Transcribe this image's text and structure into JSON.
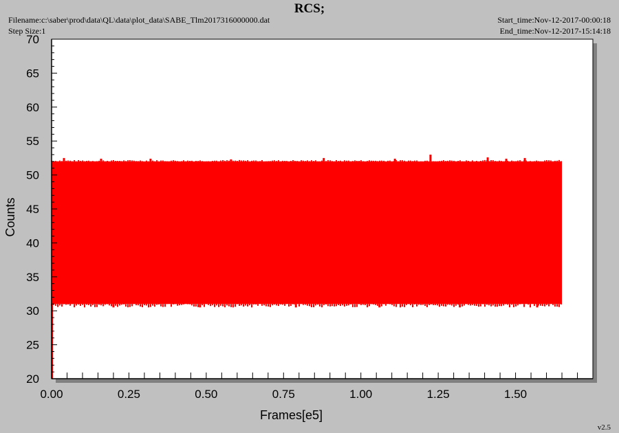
{
  "header": {
    "title": "RCS;",
    "filename": "Filename:c:\\saber\\prod\\data\\QL\\data\\plot_data\\SABE_Tlm2017316000000.dat",
    "step_size": "Step Size:1",
    "start_time": "Start_time:Nov-12-2017-00:00:18",
    "end_time": "End_time:Nov-12-2017-15:14:18"
  },
  "footer": {
    "version": "v2.5"
  },
  "colors": {
    "series": "#ff0000",
    "background": "#c0c0c0",
    "plot_area": "#ffffff",
    "shadow": "#808080"
  },
  "chart_data": {
    "type": "line",
    "title": "RCS;",
    "xlabel": "Frames[e5]",
    "ylabel": "Counts",
    "xlim": [
      0,
      1.75
    ],
    "ylim": [
      20,
      70
    ],
    "xticks": [
      0.0,
      0.25,
      0.5,
      0.75,
      1.0,
      1.25,
      1.5
    ],
    "xtick_labels": [
      "0.00",
      "0.25",
      "0.50",
      "0.75",
      "1.00",
      "1.25",
      "1.50"
    ],
    "yticks": [
      20,
      25,
      30,
      35,
      40,
      45,
      50,
      55,
      60,
      65,
      70
    ],
    "ytick_labels": [
      "20",
      "25",
      "30",
      "35",
      "40",
      "45",
      "50",
      "55",
      "60",
      "65",
      "70"
    ],
    "grid": false,
    "series": [
      {
        "color": "#ff0000",
        "x_range": [
          0.0,
          1.65
        ],
        "band_low": 30.5,
        "band_high": 52.2,
        "typical_low": 31.0,
        "typical_high": 52.0,
        "start_value": 20.0,
        "spikes": [
          {
            "x": 0.04,
            "y": 52.5
          },
          {
            "x": 0.16,
            "y": 52.4
          },
          {
            "x": 0.32,
            "y": 52.4
          },
          {
            "x": 0.58,
            "y": 52.3
          },
          {
            "x": 0.88,
            "y": 52.5
          },
          {
            "x": 1.11,
            "y": 52.4
          },
          {
            "x": 1.225,
            "y": 53.0
          },
          {
            "x": 1.41,
            "y": 52.6
          },
          {
            "x": 1.47,
            "y": 52.4
          },
          {
            "x": 1.53,
            "y": 52.5
          }
        ],
        "dips": [
          {
            "x": 0.2,
            "y": 30.5
          },
          {
            "x": 0.48,
            "y": 30.5
          },
          {
            "x": 0.79,
            "y": 30.5
          },
          {
            "x": 1.06,
            "y": 30.5
          },
          {
            "x": 1.32,
            "y": 30.5
          },
          {
            "x": 1.57,
            "y": 30.5
          }
        ]
      }
    ]
  }
}
